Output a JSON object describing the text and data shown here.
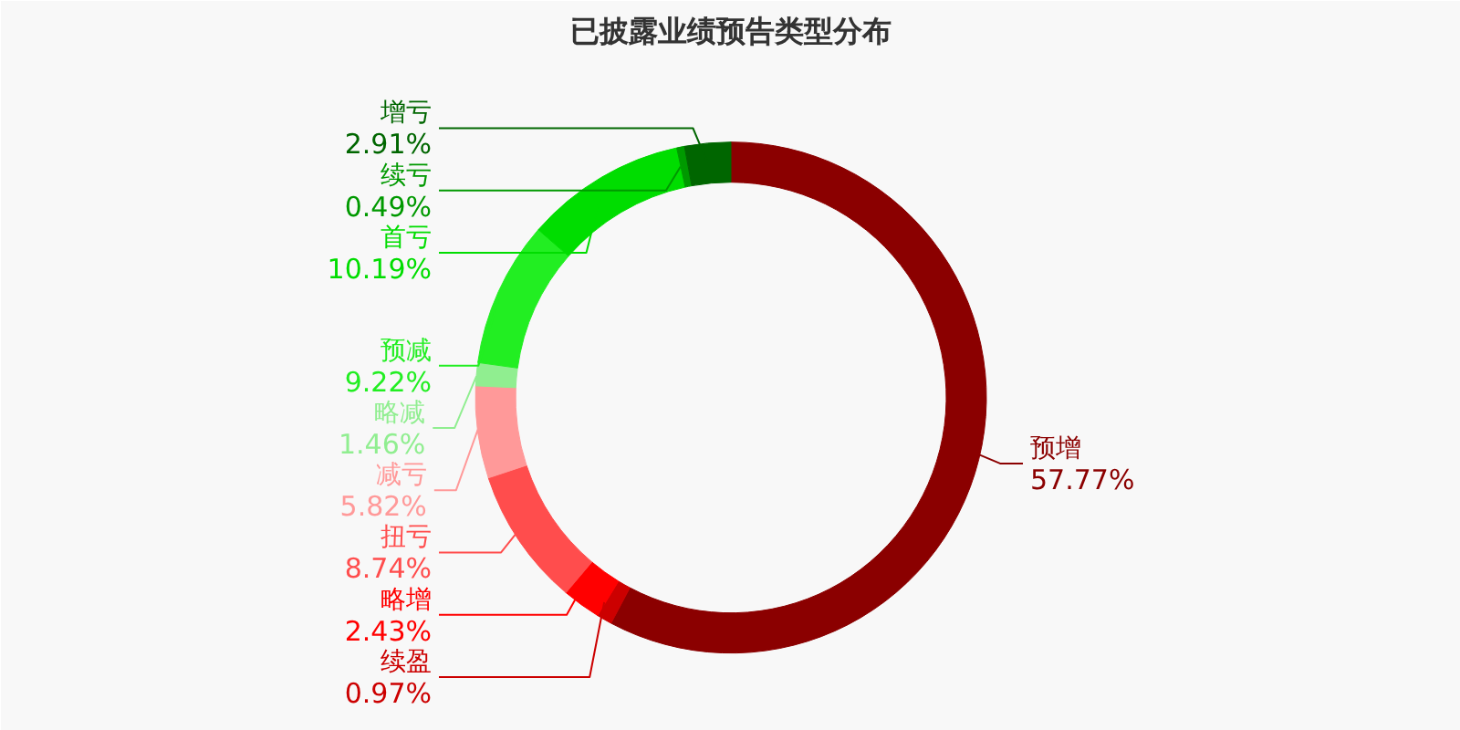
{
  "chart_data": {
    "type": "donut",
    "title": "已披露业绩预告类型分布",
    "categories": [
      "预增",
      "续盈",
      "略增",
      "扭亏",
      "减亏",
      "略减",
      "预减",
      "首亏",
      "续亏",
      "增亏"
    ],
    "values": [
      57.77,
      0.97,
      2.43,
      8.74,
      5.82,
      1.46,
      9.22,
      10.19,
      0.49,
      2.91
    ],
    "colors": [
      "#8b0000",
      "#cc0000",
      "#ff0000",
      "#ff4d4d",
      "#ff9999",
      "#90ee90",
      "#22ee22",
      "#00dd00",
      "#009900",
      "#006600"
    ],
    "value_labels": [
      "57.77%",
      "0.97%",
      "2.43%",
      "8.74%",
      "5.82%",
      "1.46%",
      "9.22%",
      "10.19%",
      "0.49%",
      "2.91%"
    ]
  }
}
